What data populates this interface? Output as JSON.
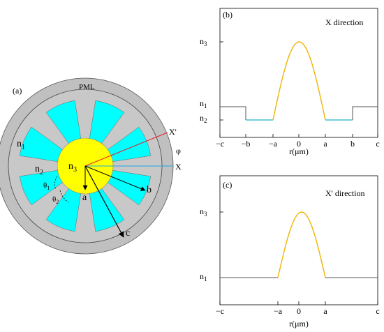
{
  "figure_a": {
    "panel_label": "(a)",
    "pml_label": "PML",
    "n1": {
      "base": "n",
      "sub": "1"
    },
    "n2": {
      "base": "n",
      "sub": "2"
    },
    "n3": {
      "base": "n",
      "sub": "3"
    },
    "axis_x": "X",
    "axis_x_prime": "X'",
    "phi": "φ",
    "theta1": {
      "base": "θ",
      "sub": "1"
    },
    "theta2": {
      "base": "θ",
      "sub": "2"
    },
    "radius_a": "a",
    "radius_b": "b",
    "radius_c": "c",
    "colors": {
      "pml": "#c0c0c0",
      "n1_ring": "#c8c8c8",
      "cladding_sector": "#00ffff",
      "core": "#ffff00",
      "x_axis": "#1fa8e0",
      "x_prime_axis": "#e8202a",
      "outline": "#555555"
    },
    "num_sectors": 8
  },
  "chart_data": [
    {
      "type": "line",
      "panel_label": "(b)",
      "title": "X direction",
      "xlabel": "r(μm)",
      "x_ticks": [
        "−c",
        "−b",
        "−a",
        "0",
        "a",
        "b",
        "c"
      ],
      "y_ticks": [
        {
          "base": "n",
          "sub": "3"
        },
        {
          "base": "n",
          "sub": "1"
        },
        {
          "base": "n",
          "sub": "2"
        }
      ],
      "series": [
        {
          "color": "#555555",
          "x": [
            "−c",
            "−b"
          ],
          "y": [
            "n1",
            "n1"
          ]
        },
        {
          "color": "#1fb2c8",
          "x": [
            "−b",
            "−a"
          ],
          "y": [
            "n2",
            "n2"
          ]
        },
        {
          "color": "#f0b400",
          "x": [
            "−a",
            "0",
            "a"
          ],
          "y": [
            "n2",
            "n3",
            "n2"
          ]
        },
        {
          "color": "#1fb2c8",
          "x": [
            "a",
            "b"
          ],
          "y": [
            "n2",
            "n2"
          ]
        },
        {
          "color": "#555555",
          "x": [
            "b",
            "c"
          ],
          "y": [
            "n1",
            "n1"
          ]
        }
      ]
    },
    {
      "type": "line",
      "panel_label": "(c)",
      "title": "X' direction",
      "xlabel": "r(μm)",
      "x_ticks": [
        "−c",
        "−a",
        "0",
        "a",
        "c"
      ],
      "y_ticks": [
        {
          "base": "n",
          "sub": "3"
        },
        {
          "base": "n",
          "sub": "1"
        }
      ],
      "series": [
        {
          "color": "#555555",
          "x": [
            "−c",
            "−a"
          ],
          "y": [
            "n1",
            "n1"
          ]
        },
        {
          "color": "#f0b400",
          "x": [
            "−a",
            "0",
            "a"
          ],
          "y": [
            "n1",
            "n3",
            "n1"
          ]
        },
        {
          "color": "#555555",
          "x": [
            "a",
            "c"
          ],
          "y": [
            "n1",
            "n1"
          ]
        }
      ]
    }
  ]
}
